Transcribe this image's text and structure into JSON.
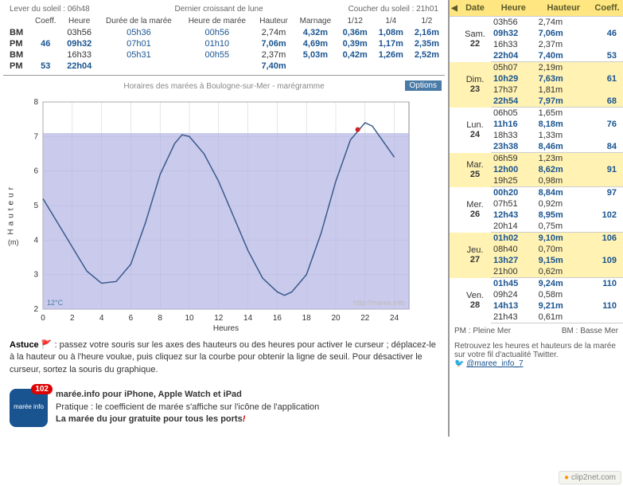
{
  "header": {
    "lever": "Lever du soleil : 06h48",
    "lune": "Dernier croissant de lune",
    "coucher": "Coucher du soleil : 21h01"
  },
  "cols": {
    "coeff": "Coeff.",
    "heure": "Heure",
    "duree": "Durée de la marée",
    "hmaree": "Heure de marée",
    "hauteur": "Hauteur",
    "marnage": "Marnage",
    "t12": "1/12",
    "t4": "1/4",
    "t2": "1/2"
  },
  "rows": [
    {
      "lbl": "BM",
      "coeff": "",
      "heure": "03h56",
      "duree": "05h36",
      "hmaree": "00h56",
      "haut": "2,74m",
      "marn": "4,32m",
      "v12": "0,36m",
      "v4": "1,08m",
      "v2": "2,16m",
      "cls": "bm"
    },
    {
      "lbl": "PM",
      "coeff": "46",
      "heure": "09h32",
      "duree": "07h01",
      "hmaree": "01h10",
      "haut": "7,06m",
      "marn": "4,69m",
      "v12": "0,39m",
      "v4": "1,17m",
      "v2": "2,35m",
      "cls": "pm"
    },
    {
      "lbl": "BM",
      "coeff": "",
      "heure": "16h33",
      "duree": "05h31",
      "hmaree": "00h55",
      "haut": "2,37m",
      "marn": "5,03m",
      "v12": "0,42m",
      "v4": "1,26m",
      "v2": "2,52m",
      "cls": "bm"
    },
    {
      "lbl": "PM",
      "coeff": "53",
      "heure": "22h04",
      "duree": "",
      "hmaree": "",
      "haut": "7,40m",
      "marn": "",
      "v12": "",
      "v4": "",
      "v2": "",
      "cls": "pm"
    }
  ],
  "chart": {
    "title": "Horaires des marées à Boulogne-sur-Mer - marégramme",
    "options": "Options",
    "ylabel": "Hauteur",
    "yunit": "(m)",
    "xlabel": "Heures",
    "xmin": 0,
    "xmax": 25,
    "ymin": 2,
    "ymax": 8,
    "xticks": [
      0,
      2,
      4,
      6,
      8,
      10,
      12,
      14,
      16,
      18,
      20,
      22,
      24
    ],
    "yticks": [
      2,
      3,
      4,
      5,
      6,
      7,
      8
    ],
    "fill_level": 7.1,
    "temp": "12°C",
    "watermark": "http://maree.info",
    "bg": "#ffffff",
    "fill": "#b3b3e6",
    "grid": "#cccccc",
    "line": "#3a5a8a",
    "marker": "#d02020",
    "data": [
      [
        0,
        5.2
      ],
      [
        1,
        4.5
      ],
      [
        2,
        3.8
      ],
      [
        3,
        3.1
      ],
      [
        4,
        2.75
      ],
      [
        5,
        2.8
      ],
      [
        6,
        3.3
      ],
      [
        7,
        4.5
      ],
      [
        8,
        5.9
      ],
      [
        9,
        6.8
      ],
      [
        9.5,
        7.05
      ],
      [
        10,
        7.0
      ],
      [
        11,
        6.5
      ],
      [
        12,
        5.7
      ],
      [
        13,
        4.7
      ],
      [
        14,
        3.7
      ],
      [
        15,
        2.9
      ],
      [
        16,
        2.5
      ],
      [
        16.5,
        2.4
      ],
      [
        17,
        2.5
      ],
      [
        18,
        3.0
      ],
      [
        19,
        4.2
      ],
      [
        20,
        5.7
      ],
      [
        21,
        6.9
      ],
      [
        22,
        7.4
      ],
      [
        22.5,
        7.3
      ],
      [
        23,
        7.0
      ],
      [
        24,
        6.4
      ]
    ],
    "marker_pt": [
      21.5,
      7.2
    ]
  },
  "astuce": {
    "label": "Astuce",
    "text": " : passez votre souris sur les axes des hauteurs ou des heures pour activer le curseur ; déplacez-le à la hauteur ou à l'heure voulue, puis cliquez sur la courbe pour obtenir la ligne de seuil. Pour désactiver le curseur, sortez la souris du graphique."
  },
  "app": {
    "badge": "102",
    "iconlabel": "marée info",
    "t1": "marée.info pour iPhone, Apple Watch et iPad",
    "t2": "Pratique : le coefficient de marée s'affiche sur l'icône de l'application",
    "t3": "La marée du jour gratuite pour tous les ports",
    "excl": "!"
  },
  "sidebar": {
    "headers": {
      "date": "Date",
      "heure": "Heure",
      "hauteur": "Hauteur",
      "coeff": "Coeff."
    },
    "days": [
      {
        "d": "Sam.",
        "n": "22",
        "alt": false,
        "lines": [
          [
            "03h56",
            "2,74m",
            "",
            false
          ],
          [
            "09h32",
            "7,06m",
            "46",
            true
          ],
          [
            "16h33",
            "2,37m",
            "",
            false
          ],
          [
            "22h04",
            "7,40m",
            "53",
            true
          ]
        ]
      },
      {
        "d": "Dim.",
        "n": "23",
        "alt": true,
        "lines": [
          [
            "05h07",
            "2,19m",
            "",
            false
          ],
          [
            "10h29",
            "7,63m",
            "61",
            true
          ],
          [
            "17h37",
            "1,81m",
            "",
            false
          ],
          [
            "22h54",
            "7,97m",
            "68",
            true
          ]
        ]
      },
      {
        "d": "Lun.",
        "n": "24",
        "alt": false,
        "lines": [
          [
            "06h05",
            "1,65m",
            "",
            false
          ],
          [
            "11h16",
            "8,18m",
            "76",
            true
          ],
          [
            "18h33",
            "1,33m",
            "",
            false
          ],
          [
            "23h38",
            "8,46m",
            "84",
            true
          ]
        ]
      },
      {
        "d": "Mar.",
        "n": "25",
        "alt": true,
        "lines": [
          [
            "06h59",
            "1,23m",
            "",
            false
          ],
          [
            "12h00",
            "8,62m",
            "91",
            true
          ],
          [
            "19h25",
            "0,98m",
            "",
            false
          ]
        ]
      },
      {
        "d": "Mer.",
        "n": "26",
        "alt": false,
        "lines": [
          [
            "00h20",
            "8,84m",
            "97",
            true
          ],
          [
            "07h51",
            "0,92m",
            "",
            false
          ],
          [
            "12h43",
            "8,95m",
            "102",
            true
          ],
          [
            "20h14",
            "0,75m",
            "",
            false
          ]
        ]
      },
      {
        "d": "Jeu.",
        "n": "27",
        "alt": true,
        "lines": [
          [
            "01h02",
            "9,10m",
            "106",
            true
          ],
          [
            "08h40",
            "0,70m",
            "",
            false
          ],
          [
            "13h27",
            "9,15m",
            "109",
            true
          ],
          [
            "21h00",
            "0,62m",
            "",
            false
          ]
        ]
      },
      {
        "d": "Ven.",
        "n": "28",
        "alt": false,
        "lines": [
          [
            "01h45",
            "9,24m",
            "110",
            true
          ],
          [
            "09h24",
            "0,58m",
            "",
            false
          ],
          [
            "14h13",
            "9,21m",
            "110",
            true
          ],
          [
            "21h43",
            "0,61m",
            "",
            false
          ]
        ]
      }
    ],
    "foot": {
      "pm": "PM : Pleine Mer",
      "bm": "BM : Basse Mer"
    },
    "twitter": {
      "text": "Retrouvez les heures et hauteurs de la marée sur votre fil d'actualité Twitter.",
      "handle": "@maree_info_7"
    }
  },
  "clip": "clip2net.com"
}
